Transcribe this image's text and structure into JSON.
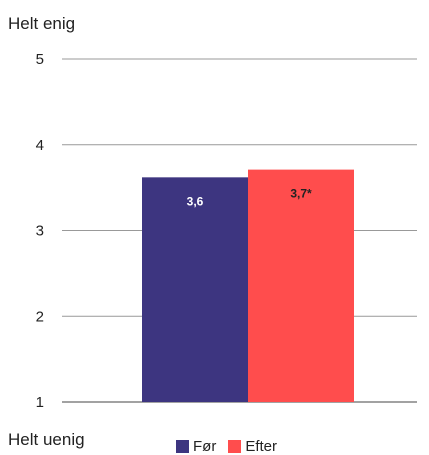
{
  "labels": {
    "top": "Helt enig",
    "bottom": "Helt uenig"
  },
  "chart_data": {
    "type": "bar",
    "title": "",
    "xlabel": "",
    "ylabel": "",
    "ylim": [
      1,
      5
    ],
    "yticks": [
      "1",
      "2",
      "3",
      "4",
      "5"
    ],
    "grid": true,
    "legend_position": "bottom",
    "categories": [
      ""
    ],
    "series": [
      {
        "name": "Før",
        "values": [
          3.62
        ],
        "label": "3,6",
        "color": "#3d3580"
      },
      {
        "name": "Efter",
        "values": [
          3.71
        ],
        "label": "3,7*",
        "color": "#ff4d4d"
      }
    ]
  }
}
